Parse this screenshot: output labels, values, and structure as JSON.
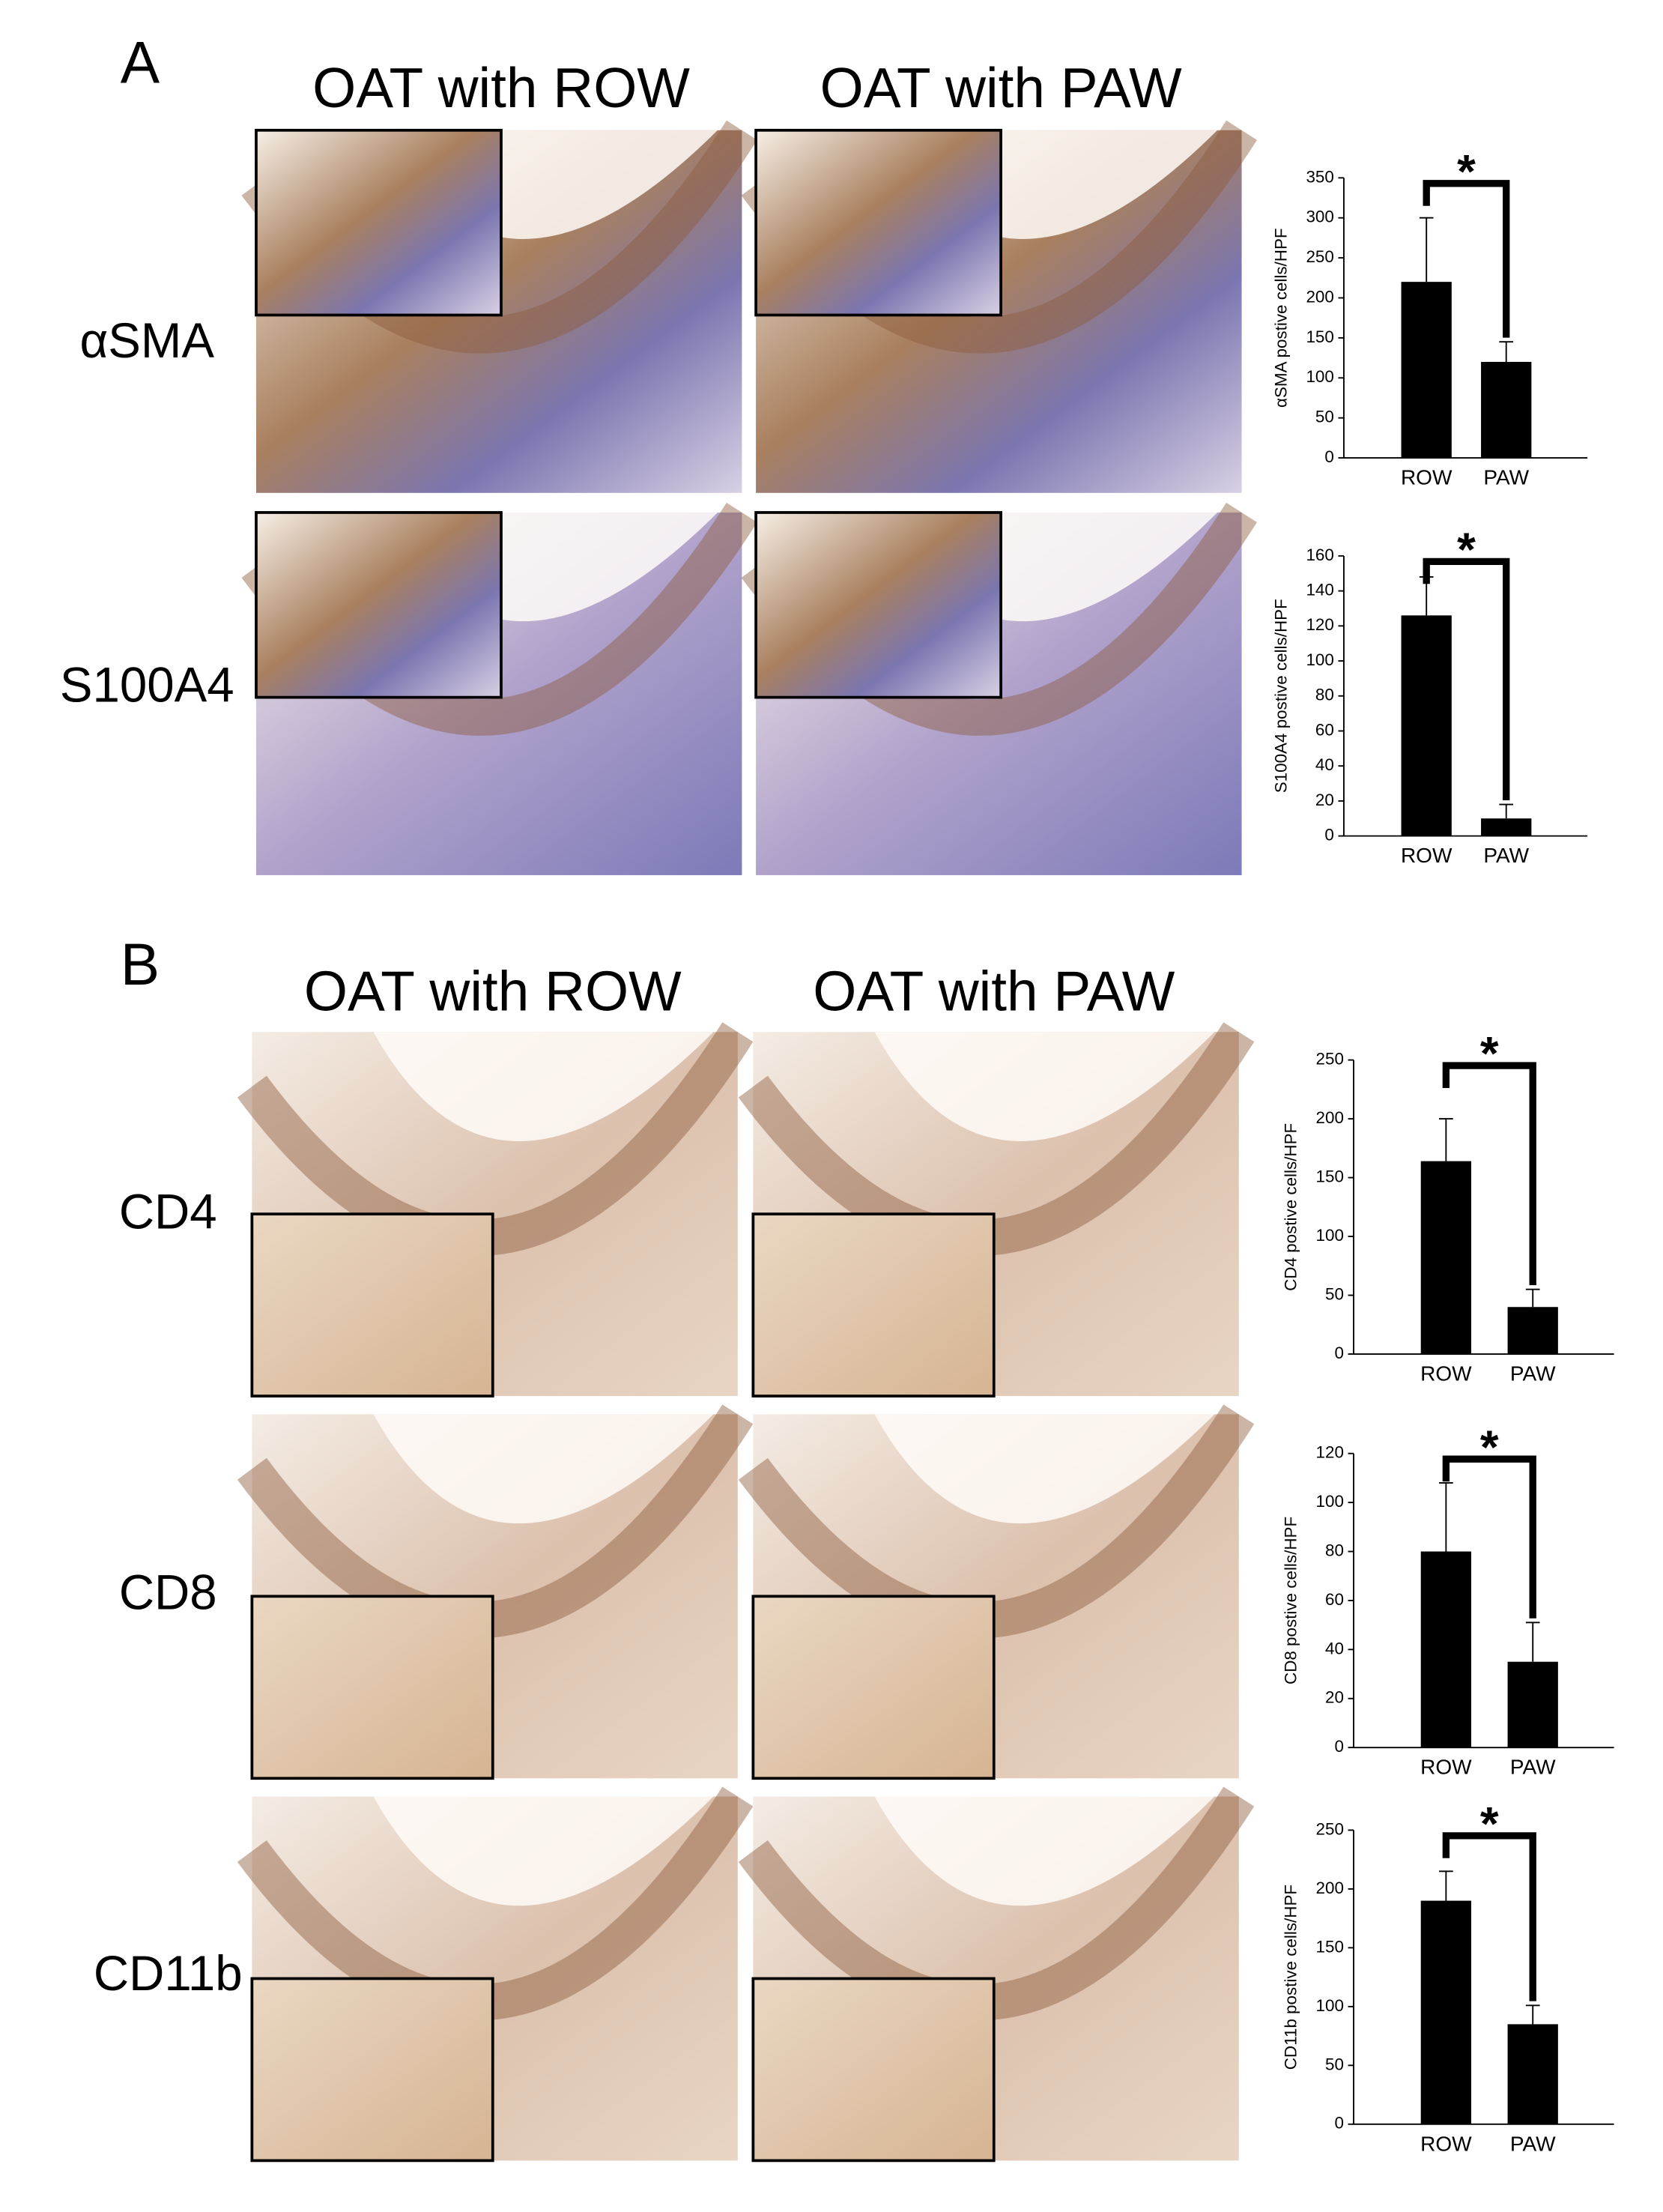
{
  "panels": [
    {
      "label": "A",
      "columns": [
        "OAT with ROW",
        "OAT with PAW"
      ],
      "rows": [
        "αSMA",
        "S100A4"
      ]
    },
    {
      "label": "B",
      "columns": [
        "OAT with ROW",
        "OAT with PAW"
      ],
      "rows": [
        "CD4",
        "CD8",
        "CD11b"
      ]
    }
  ],
  "chart_data": [
    {
      "type": "bar",
      "ylabel": "αSMA postive cells/HPF",
      "categories": [
        "ROW",
        "PAW"
      ],
      "values": [
        220,
        120
      ],
      "errors": [
        80,
        25
      ],
      "color": "#000000",
      "ylim": [
        0,
        350
      ],
      "yticks": [
        0,
        50,
        100,
        150,
        200,
        250,
        300,
        350
      ],
      "annotation": "*"
    },
    {
      "type": "bar",
      "ylabel": "S100A4 postive cells/HPF",
      "categories": [
        "ROW",
        "PAW"
      ],
      "values": [
        126,
        10
      ],
      "errors": [
        22,
        8
      ],
      "color": "#000000",
      "ylim": [
        0,
        160
      ],
      "yticks": [
        0,
        20,
        40,
        60,
        80,
        100,
        120,
        140,
        160
      ],
      "annotation": "*"
    },
    {
      "type": "bar",
      "ylabel": "CD4 postive cells/HPF",
      "categories": [
        "ROW",
        "PAW"
      ],
      "values": [
        164,
        40
      ],
      "errors": [
        36,
        15
      ],
      "color": "#000000",
      "ylim": [
        0,
        250
      ],
      "yticks": [
        0,
        50,
        100,
        150,
        200,
        250
      ],
      "annotation": "*"
    },
    {
      "type": "bar",
      "ylabel": "CD8 postive cells/HPF",
      "categories": [
        "ROW",
        "PAW"
      ],
      "values": [
        80,
        35
      ],
      "errors": [
        28,
        16
      ],
      "color": "#000000",
      "ylim": [
        0,
        120
      ],
      "yticks": [
        0,
        20,
        40,
        60,
        80,
        100,
        120
      ],
      "annotation": "*"
    },
    {
      "type": "bar",
      "ylabel": "CD11b postive cells/HPF",
      "categories": [
        "ROW",
        "PAW"
      ],
      "values": [
        190,
        85
      ],
      "errors": [
        25,
        16
      ],
      "color": "#000000",
      "ylim": [
        0,
        250
      ],
      "yticks": [
        0,
        50,
        100,
        150,
        200,
        250
      ],
      "annotation": "*"
    }
  ]
}
